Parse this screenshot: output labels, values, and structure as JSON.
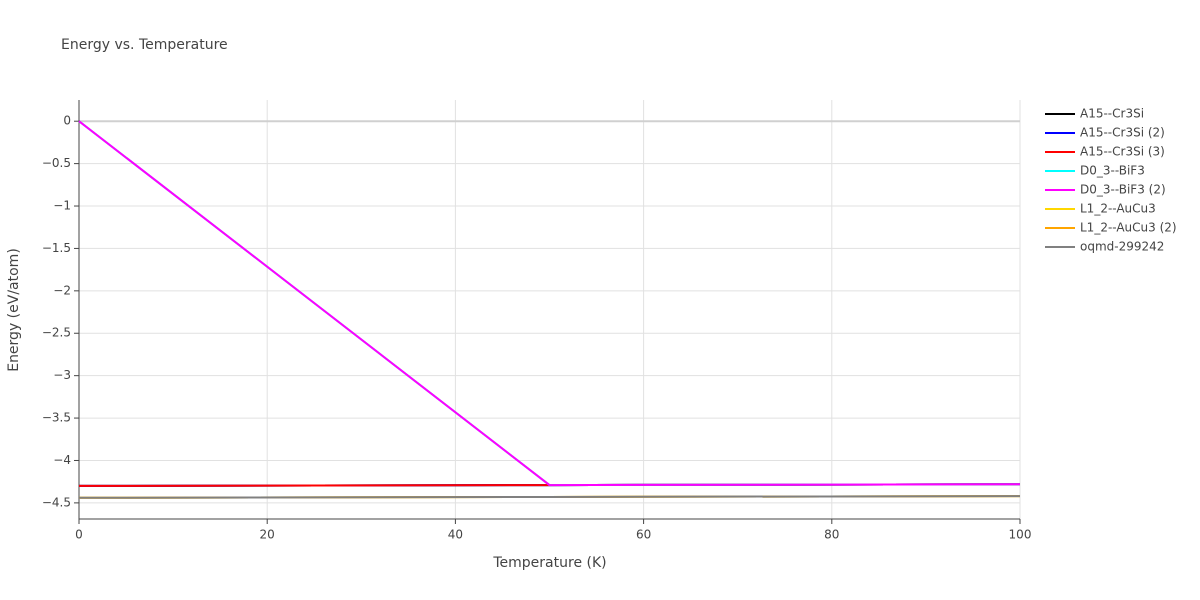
{
  "chart_data": {
    "type": "line",
    "title": "Energy vs. Temperature",
    "x_label": "Temperature (K)",
    "y_label": "Energy (eV/atom)",
    "x": [
      0,
      50,
      100
    ],
    "series": [
      {
        "name": "A15--Cr3Si",
        "color": "#000000",
        "values": [
          -4.3,
          -4.29,
          -4.28
        ]
      },
      {
        "name": "A15--Cr3Si (2)",
        "color": "#0000ff",
        "values": [
          -4.3,
          -4.29,
          -4.28
        ]
      },
      {
        "name": "A15--Cr3Si (3)",
        "color": "#ff0000",
        "values": [
          -4.3,
          -4.29,
          -4.28
        ]
      },
      {
        "name": "D0_3--BiF3",
        "color": "#00ffff",
        "values": [
          0,
          -4.29,
          -4.28
        ]
      },
      {
        "name": "D0_3--BiF3 (2)",
        "color": "#ff00ff",
        "values": [
          0,
          -4.29,
          -4.28
        ]
      },
      {
        "name": "L1_2--AuCu3",
        "color": "#ffd700",
        "values": [
          -4.44,
          -4.43,
          -4.42
        ]
      },
      {
        "name": "L1_2--AuCu3 (2)",
        "color": "#ffa500",
        "values": [
          -4.44,
          -4.43,
          -4.42
        ]
      },
      {
        "name": "oqmd-299242",
        "color": "#808080",
        "values": [
          -4.44,
          -4.43,
          -4.42
        ]
      }
    ],
    "xlim": [
      0,
      100
    ],
    "xticks": [
      0,
      20,
      40,
      60,
      80,
      100
    ],
    "ylim": [
      -4.69,
      0.25
    ],
    "yticks": [
      0,
      {
        "value": -0.5,
        "label": "−0.5"
      },
      {
        "value": -1,
        "label": "−1"
      },
      {
        "value": -1.5,
        "label": "−1.5"
      },
      {
        "value": -2,
        "label": "−2"
      },
      {
        "value": -2.5,
        "label": "−2.5"
      },
      {
        "value": -3,
        "label": "−3"
      },
      {
        "value": -3.5,
        "label": "−3.5"
      },
      {
        "value": -4,
        "label": "−4"
      },
      {
        "value": -4.5,
        "label": "−4.5"
      }
    ],
    "grid": true
  }
}
